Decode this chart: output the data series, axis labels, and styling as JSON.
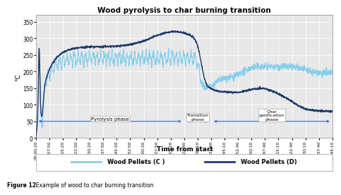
{
  "title": "Wood pyrolysis to char burning transition",
  "xlabel": "Time from start",
  "ylabel": "°C",
  "ylim": [
    0,
    370
  ],
  "yticks": [
    0,
    50,
    100,
    150,
    200,
    250,
    300,
    350
  ],
  "xtick_labels": [
    "00:00:20",
    "00:07:50",
    "00:15:20",
    "00:22:50",
    "00:30:20",
    "00:37:50",
    "00:45:20",
    "00:52:50",
    "01:00:20",
    "01:07:50",
    "01:15:20",
    "01:22:40",
    "01:30:10",
    "01:37:40",
    "01:45:10",
    "01:52:40",
    "02:00:10",
    "02:07:40",
    "02:15:10",
    "02:22:40",
    "02:30:10",
    "02:37:40",
    "02:45:10"
  ],
  "color_C": "#87CEEB",
  "color_D": "#1C3A6E",
  "legend_label_C": "Wood Pellets (C )",
  "legend_label_D": "Wood Pellets (D)",
  "figure_caption_bold": "Figure 12",
  "figure_caption_rest": ". Example of wood to char burning transition",
  "pyrolysis_label": "Pyrolysis phase",
  "transition_label": "Transition\nphase",
  "char_label": "Char\ngasification\nphase",
  "plot_bg": "#e8e8e8",
  "grid_color": "#ffffff",
  "arrow_color": "#4472C4"
}
